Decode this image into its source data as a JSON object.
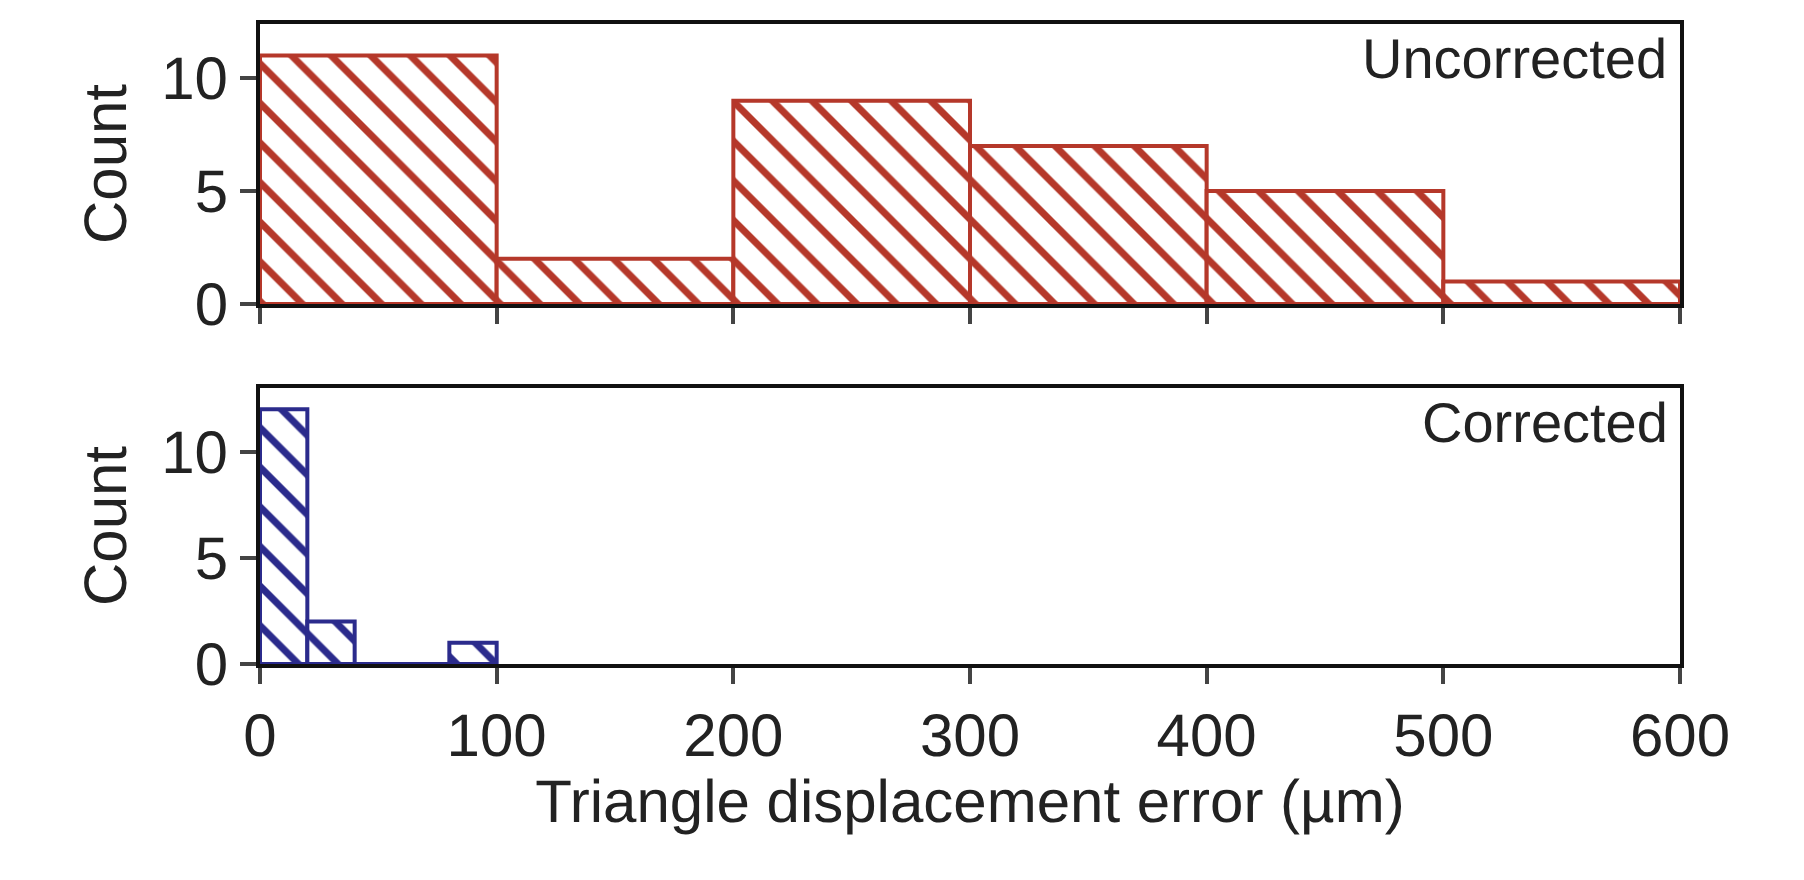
{
  "chart_data": [
    {
      "type": "histogram",
      "ylabel": "Count",
      "annotations": [
        "Uncorrected"
      ],
      "bins": [
        0,
        100,
        200,
        300,
        400,
        500,
        600
      ],
      "values": [
        11,
        2,
        9,
        7,
        5,
        1
      ],
      "color": "#b5382a",
      "xlim": [
        0,
        600
      ],
      "xticks": [
        0,
        100,
        200,
        300,
        400,
        500,
        600
      ],
      "ylim": [
        0,
        12.4
      ],
      "yticks": [
        0,
        5,
        10
      ],
      "tick_labels": "y",
      "grid": false
    },
    {
      "type": "histogram",
      "ylabel": "Count",
      "xlabel": "Triangle displacement error (µm)",
      "annotations": [
        "Corrected"
      ],
      "bins": [
        0,
        20,
        40,
        60,
        80,
        100
      ],
      "values": [
        12,
        2,
        0,
        0,
        1
      ],
      "color": "#2b2b8c",
      "xlim": [
        0,
        600
      ],
      "xticks": [
        0,
        100,
        200,
        300,
        400,
        500,
        600
      ],
      "ylim": [
        0,
        13
      ],
      "yticks": [
        0,
        5,
        10
      ],
      "grid": false
    }
  ]
}
